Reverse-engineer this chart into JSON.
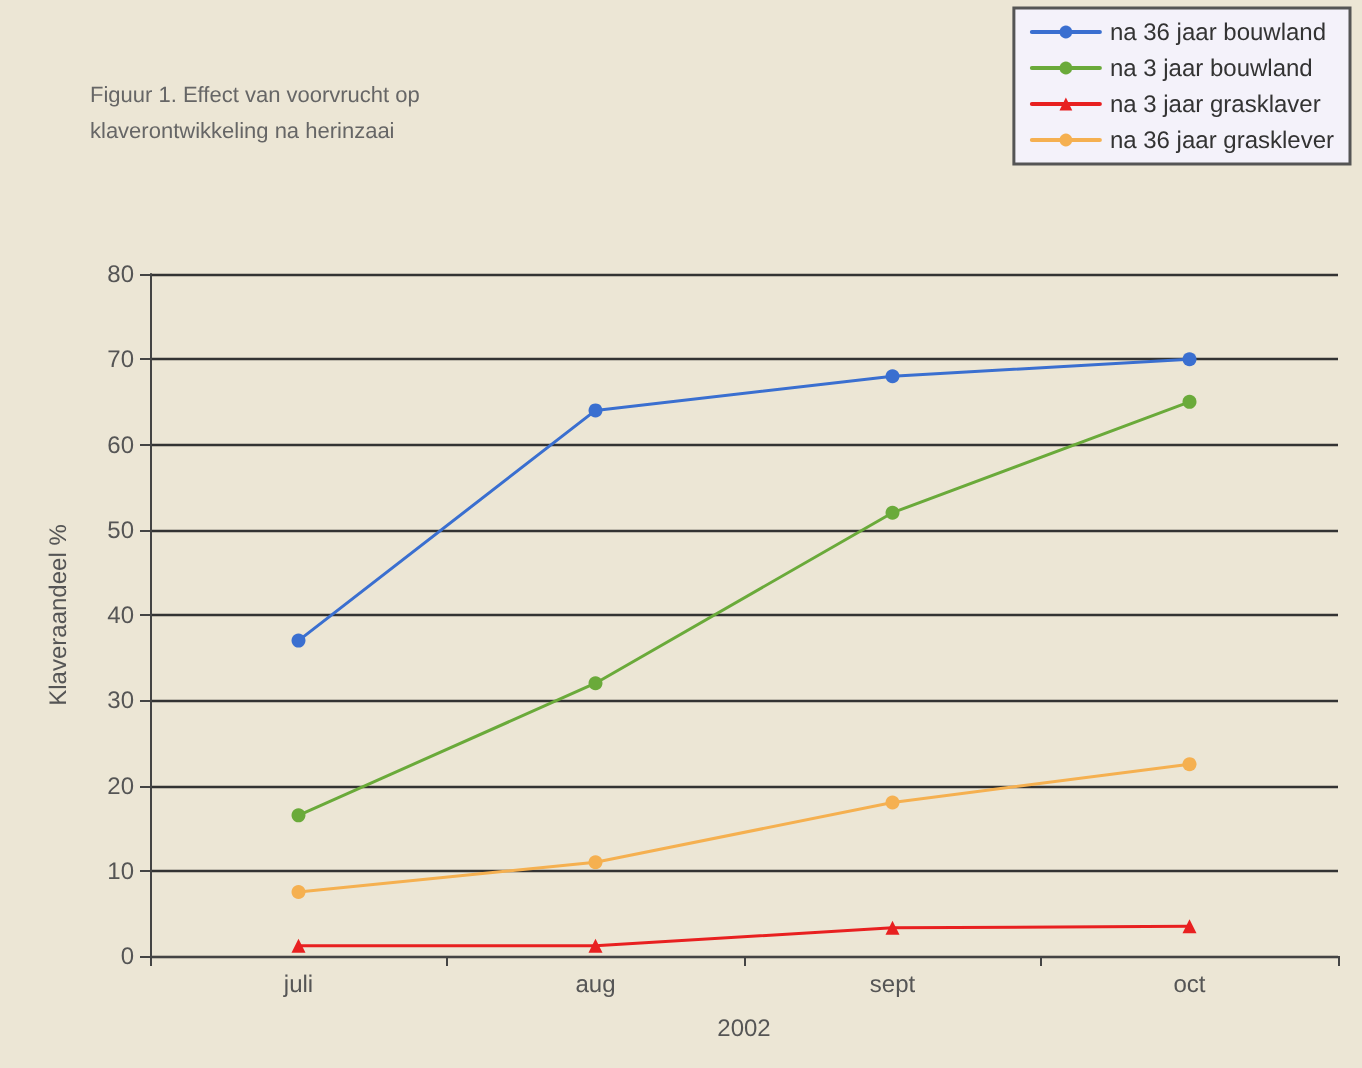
{
  "chart_data": {
    "type": "line",
    "title": "Figuur 1. Effect van voorvrucht op klaverontwikkeling na herinzaai",
    "xlabel": "2002",
    "ylabel": "Klaveraandeel %",
    "categories": [
      "juli",
      "aug",
      "sept",
      "oct"
    ],
    "series": [
      {
        "name": "na 36 jaar bouwland",
        "color": "#3a6fd0",
        "marker": "circle",
        "values": [
          37,
          64,
          68,
          70
        ]
      },
      {
        "name": "na 3 jaar bouwland",
        "color": "#6aaa3a",
        "marker": "circle",
        "values": [
          16.5,
          32,
          52,
          65
        ]
      },
      {
        "name": "na 3 jaar grasklaver",
        "color": "#e82020",
        "marker": "triangle",
        "values": [
          1.2,
          1.2,
          3.3,
          3.5
        ]
      },
      {
        "name": "na 36 jaar grasklever",
        "color": "#f5b050",
        "marker": "circle",
        "values": [
          7.5,
          11,
          18,
          22.5
        ]
      }
    ],
    "ylim": [
      0,
      80
    ],
    "yticks": [
      0,
      10,
      20,
      30,
      40,
      50,
      60,
      70,
      80
    ],
    "grid": "y",
    "legend": "top right",
    "line_style": "solid"
  }
}
